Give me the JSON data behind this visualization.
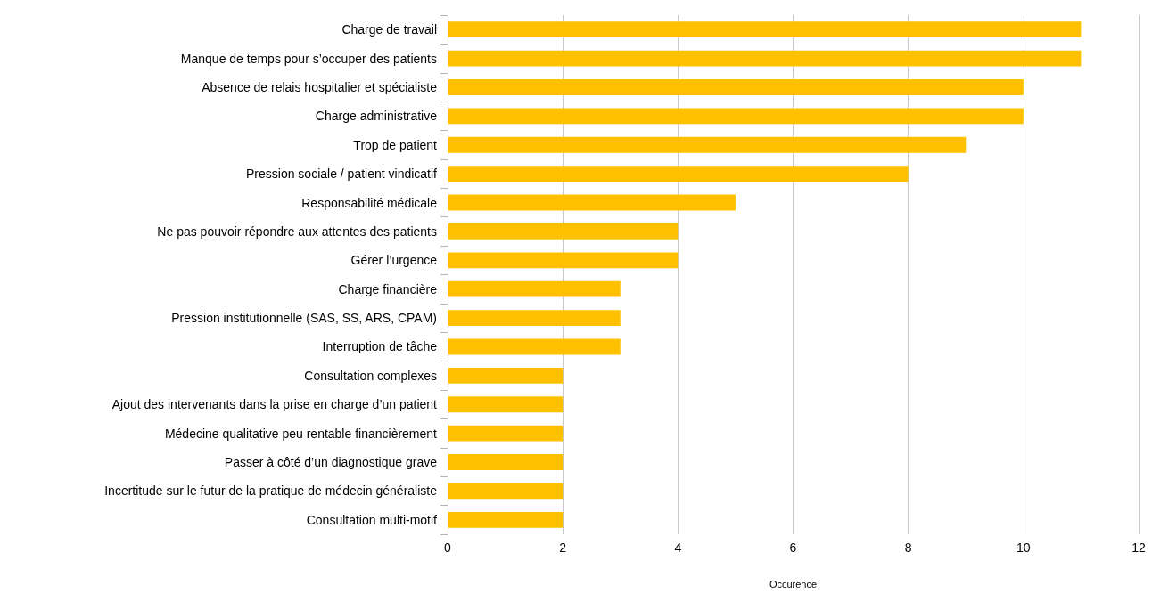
{
  "chart_data": {
    "type": "bar",
    "orientation": "horizontal",
    "xlabel": "Occurence",
    "categories": [
      "Charge de travail",
      "Manque de temps pour s’occuper des patients",
      "Absence de relais hospitalier et spécialiste",
      "Charge administrative",
      "Trop de patient",
      "Pression sociale / patient vindicatif",
      "Responsabilité médicale",
      "Ne pas pouvoir répondre aux attentes des patients",
      "Gérer l’urgence",
      "Charge financière",
      "Pression institutionnelle (SAS, SS, ARS, CPAM)",
      "Interruption de tâche",
      "Consultation complexes",
      "Ajout des intervenants dans la prise en charge d’un patient",
      "Médecine qualitative peu rentable financièrement",
      "Passer à côté d’un diagnostique grave",
      "Incertitude sur le futur de la pratique de médecin généraliste",
      "Consultation multi-motif"
    ],
    "values": [
      11,
      11,
      10,
      10,
      9,
      8,
      5,
      4,
      4,
      3,
      3,
      3,
      2,
      2,
      2,
      2,
      2,
      2
    ],
    "color": "#ffc000",
    "xlim": [
      0,
      12
    ],
    "xticks": [
      0,
      2,
      4,
      6,
      8,
      10,
      12
    ],
    "grid": "x"
  }
}
